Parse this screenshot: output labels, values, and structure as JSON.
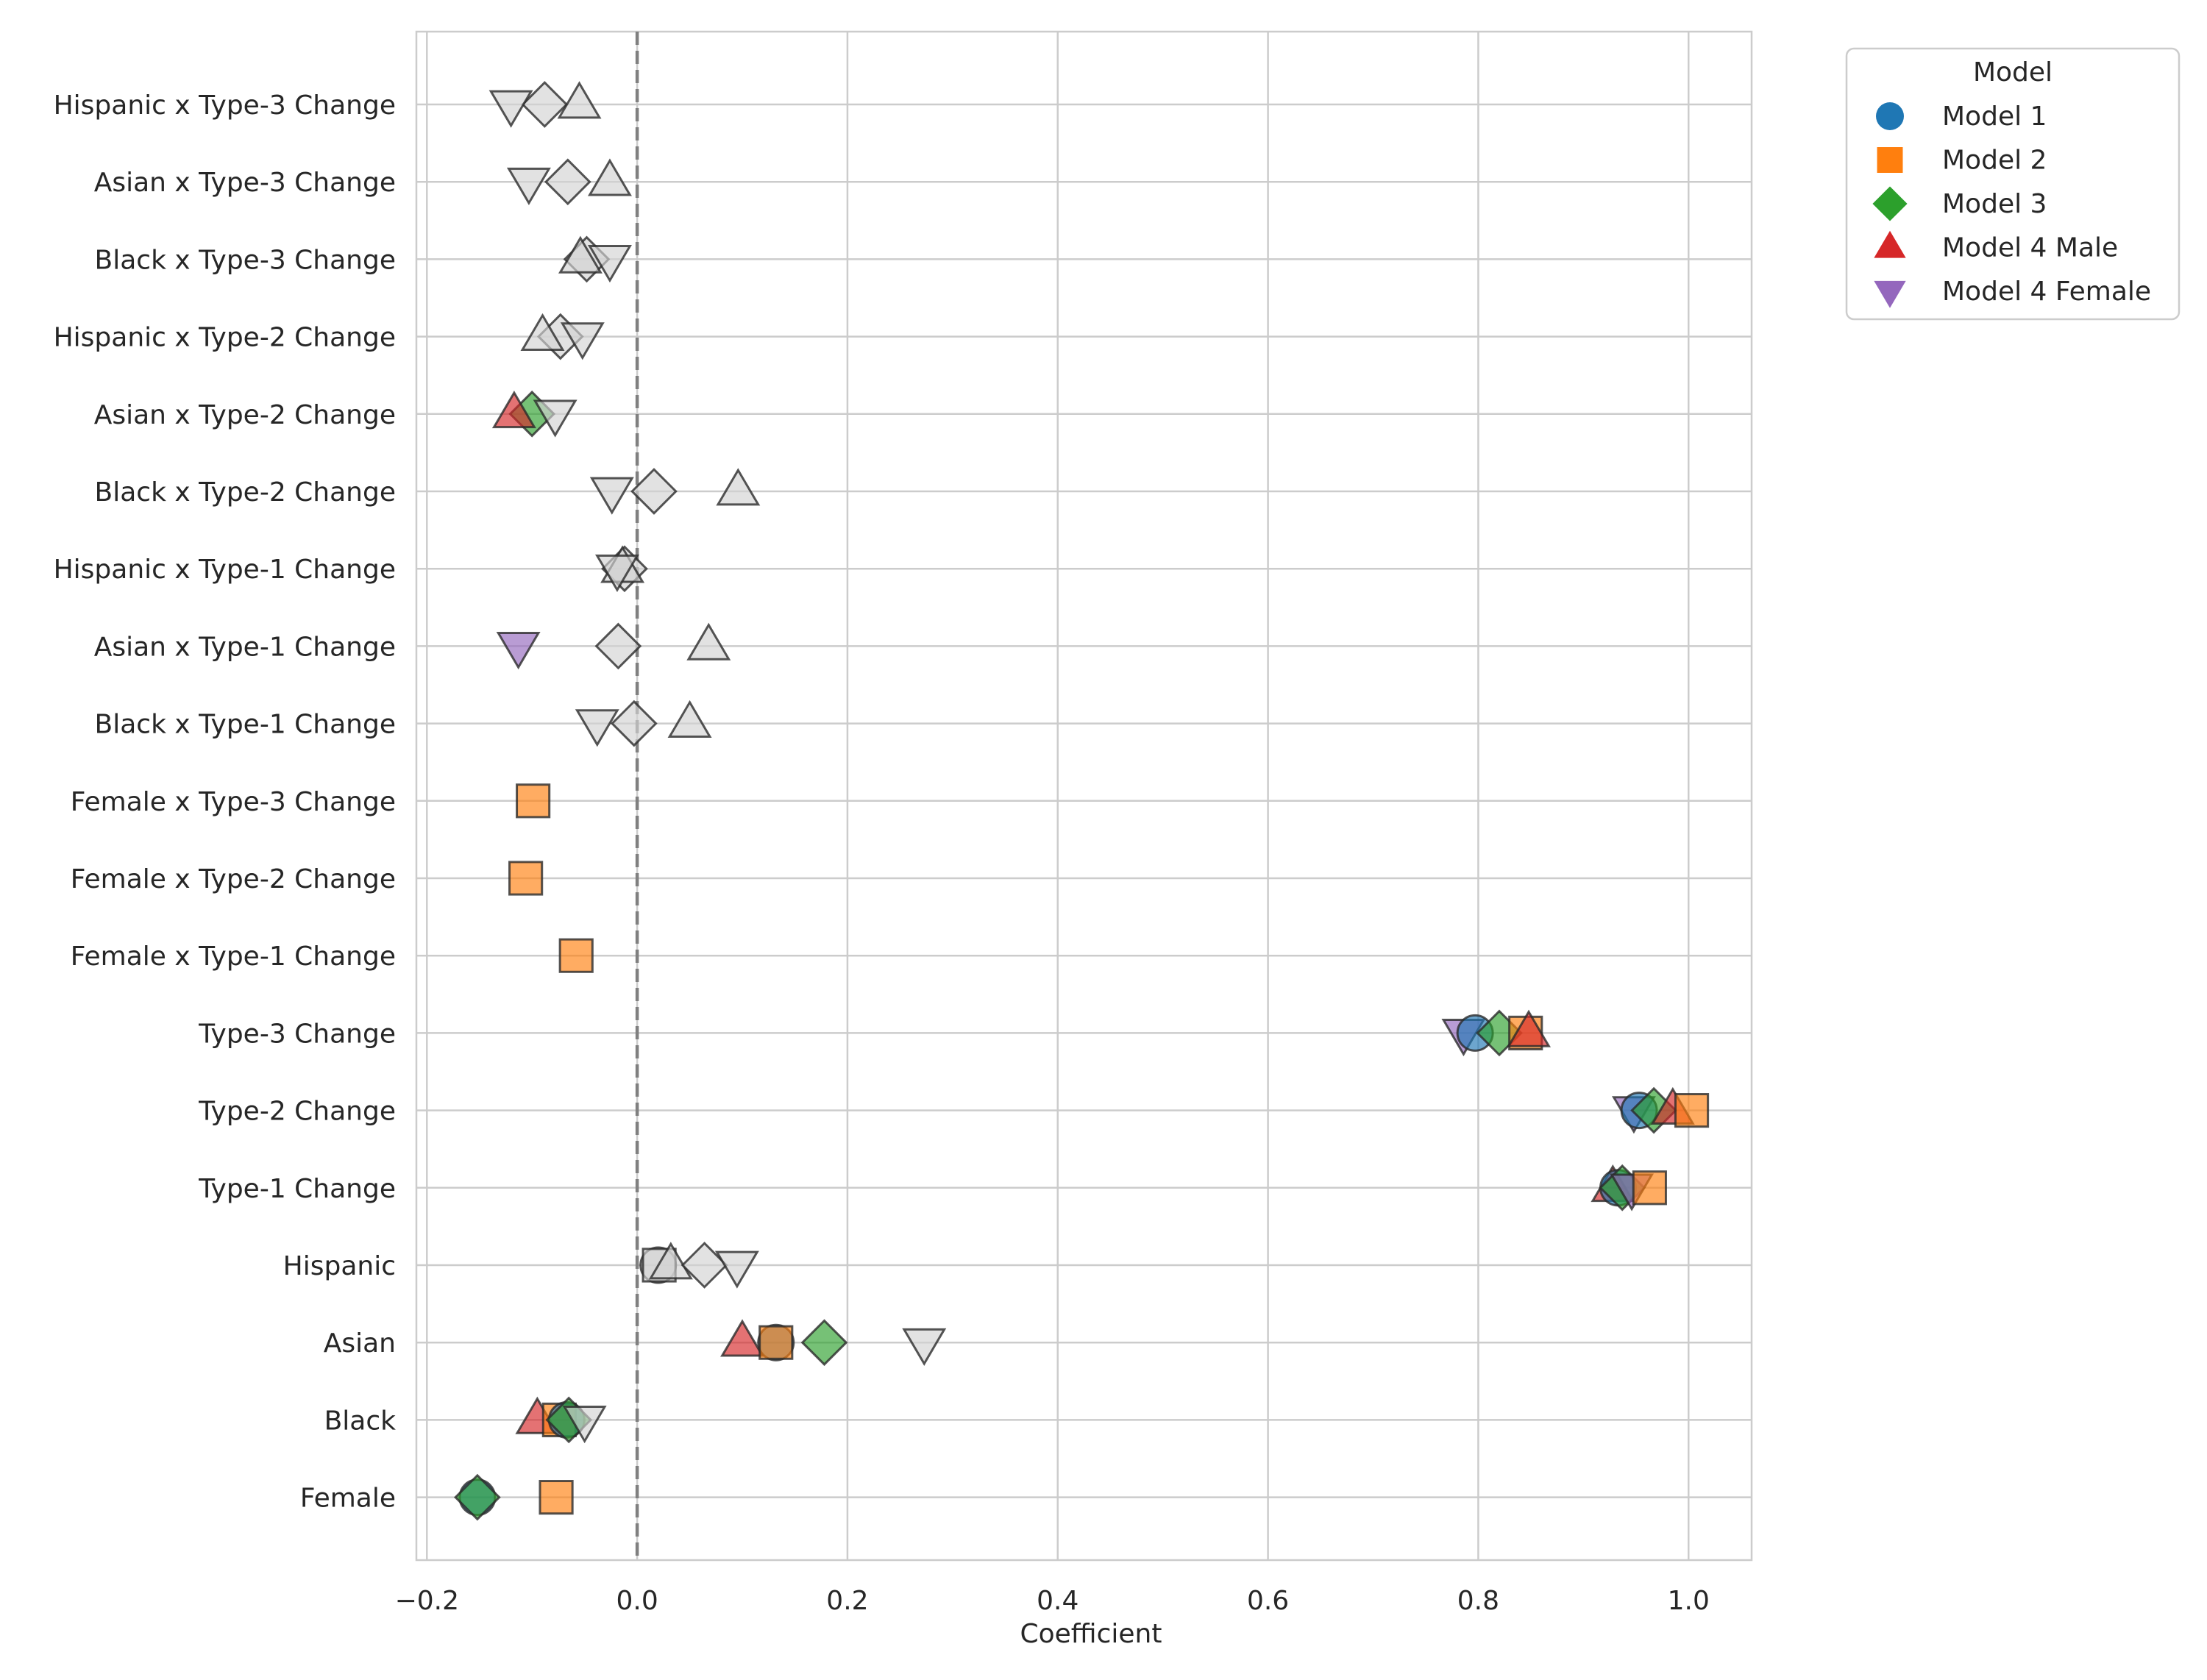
{
  "chart_data": {
    "type": "scatter",
    "title": "",
    "xlabel": "Coefficient",
    "ylabel": "",
    "xlim": [
      -0.21,
      1.06
    ],
    "xticks": [
      -0.2,
      0.0,
      0.2,
      0.4,
      0.6,
      0.8,
      1.0
    ],
    "xtick_labels": [
      "−0.2",
      "0.0",
      "0.2",
      "0.4",
      "0.6",
      "0.8",
      "1.0"
    ],
    "reference_line": 0.0,
    "grid": true,
    "legend_placement": "outside-top-right",
    "legend": {
      "title": "Model",
      "entries": [
        {
          "name": "Model 1",
          "marker": "circle",
          "color": "#1f77b4"
        },
        {
          "name": "Model 2",
          "marker": "square",
          "color": "#ff7f0e"
        },
        {
          "name": "Model 3",
          "marker": "diamond",
          "color": "#2ca02c"
        },
        {
          "name": "Model 4 Male",
          "marker": "triangle-up",
          "color": "#d62728"
        },
        {
          "name": "Model 4 Female",
          "marker": "triangle-down",
          "color": "#9467bd"
        }
      ]
    },
    "insignificant_color": "#d3d3d3",
    "categories": [
      "Hispanic x Type-3 Change",
      "Asian x Type-3 Change",
      "Black x Type-3 Change",
      "Hispanic x Type-2 Change",
      "Asian x Type-2 Change",
      "Black x Type-2 Change",
      "Hispanic x Type-1 Change",
      "Asian x Type-1 Change",
      "Black x Type-1 Change",
      "Female x Type-3 Change",
      "Female x Type-2 Change",
      "Female x Type-1 Change",
      "Type-3 Change",
      "Type-2 Change",
      "Type-1 Change",
      "Hispanic",
      "Asian",
      "Black",
      "Female"
    ],
    "points": [
      {
        "category": "Hispanic x Type-3 Change",
        "model": "Model 3",
        "value": -0.088,
        "significant": false
      },
      {
        "category": "Hispanic x Type-3 Change",
        "model": "Model 4 Male",
        "value": -0.055,
        "significant": false
      },
      {
        "category": "Hispanic x Type-3 Change",
        "model": "Model 4 Female",
        "value": -0.12,
        "significant": false
      },
      {
        "category": "Asian x Type-3 Change",
        "model": "Model 3",
        "value": -0.066,
        "significant": false
      },
      {
        "category": "Asian x Type-3 Change",
        "model": "Model 4 Male",
        "value": -0.026,
        "significant": false
      },
      {
        "category": "Asian x Type-3 Change",
        "model": "Model 4 Female",
        "value": -0.103,
        "significant": false
      },
      {
        "category": "Black x Type-3 Change",
        "model": "Model 3",
        "value": -0.048,
        "significant": false
      },
      {
        "category": "Black x Type-3 Change",
        "model": "Model 4 Male",
        "value": -0.054,
        "significant": false
      },
      {
        "category": "Black x Type-3 Change",
        "model": "Model 4 Female",
        "value": -0.026,
        "significant": false
      },
      {
        "category": "Hispanic x Type-2 Change",
        "model": "Model 3",
        "value": -0.073,
        "significant": false
      },
      {
        "category": "Hispanic x Type-2 Change",
        "model": "Model 4 Male",
        "value": -0.09,
        "significant": false
      },
      {
        "category": "Hispanic x Type-2 Change",
        "model": "Model 4 Female",
        "value": -0.052,
        "significant": false
      },
      {
        "category": "Asian x Type-2 Change",
        "model": "Model 3",
        "value": -0.1,
        "significant": true
      },
      {
        "category": "Asian x Type-2 Change",
        "model": "Model 4 Male",
        "value": -0.117,
        "significant": true
      },
      {
        "category": "Asian x Type-2 Change",
        "model": "Model 4 Female",
        "value": -0.078,
        "significant": false
      },
      {
        "category": "Black x Type-2 Change",
        "model": "Model 3",
        "value": 0.016,
        "significant": false
      },
      {
        "category": "Black x Type-2 Change",
        "model": "Model 4 Male",
        "value": 0.096,
        "significant": false
      },
      {
        "category": "Black x Type-2 Change",
        "model": "Model 4 Female",
        "value": -0.024,
        "significant": false
      },
      {
        "category": "Hispanic x Type-1 Change",
        "model": "Model 3",
        "value": -0.012,
        "significant": false
      },
      {
        "category": "Hispanic x Type-1 Change",
        "model": "Model 4 Male",
        "value": -0.014,
        "significant": false
      },
      {
        "category": "Hispanic x Type-1 Change",
        "model": "Model 4 Female",
        "value": -0.019,
        "significant": false
      },
      {
        "category": "Asian x Type-1 Change",
        "model": "Model 3",
        "value": -0.018,
        "significant": false
      },
      {
        "category": "Asian x Type-1 Change",
        "model": "Model 4 Male",
        "value": 0.068,
        "significant": false
      },
      {
        "category": "Asian x Type-1 Change",
        "model": "Model 4 Female",
        "value": -0.113,
        "significant": true
      },
      {
        "category": "Black x Type-1 Change",
        "model": "Model 3",
        "value": -0.003,
        "significant": false
      },
      {
        "category": "Black x Type-1 Change",
        "model": "Model 4 Male",
        "value": 0.05,
        "significant": false
      },
      {
        "category": "Black x Type-1 Change",
        "model": "Model 4 Female",
        "value": -0.038,
        "significant": false
      },
      {
        "category": "Female x Type-3 Change",
        "model": "Model 2",
        "value": -0.099,
        "significant": true
      },
      {
        "category": "Female x Type-2 Change",
        "model": "Model 2",
        "value": -0.106,
        "significant": true
      },
      {
        "category": "Female x Type-1 Change",
        "model": "Model 2",
        "value": -0.058,
        "significant": true
      },
      {
        "category": "Type-3 Change",
        "model": "Model 4 Female",
        "value": 0.786,
        "significant": true
      },
      {
        "category": "Type-3 Change",
        "model": "Model 1",
        "value": 0.797,
        "significant": true
      },
      {
        "category": "Type-3 Change",
        "model": "Model 3",
        "value": 0.82,
        "significant": true
      },
      {
        "category": "Type-3 Change",
        "model": "Model 2",
        "value": 0.845,
        "significant": true
      },
      {
        "category": "Type-3 Change",
        "model": "Model 4 Male",
        "value": 0.848,
        "significant": true
      },
      {
        "category": "Type-2 Change",
        "model": "Model 4 Female",
        "value": 0.948,
        "significant": true
      },
      {
        "category": "Type-2 Change",
        "model": "Model 1",
        "value": 0.953,
        "significant": true
      },
      {
        "category": "Type-2 Change",
        "model": "Model 3",
        "value": 0.967,
        "significant": true
      },
      {
        "category": "Type-2 Change",
        "model": "Model 4 Male",
        "value": 0.985,
        "significant": true
      },
      {
        "category": "Type-2 Change",
        "model": "Model 2",
        "value": 1.003,
        "significant": true
      },
      {
        "category": "Type-1 Change",
        "model": "Model 4 Male",
        "value": 0.928,
        "significant": true
      },
      {
        "category": "Type-1 Change",
        "model": "Model 1",
        "value": 0.933,
        "significant": true
      },
      {
        "category": "Type-1 Change",
        "model": "Model 3",
        "value": 0.937,
        "significant": true
      },
      {
        "category": "Type-1 Change",
        "model": "Model 4 Female",
        "value": 0.946,
        "significant": true
      },
      {
        "category": "Type-1 Change",
        "model": "Model 2",
        "value": 0.963,
        "significant": true
      },
      {
        "category": "Hispanic",
        "model": "Model 1",
        "value": 0.02,
        "significant": false
      },
      {
        "category": "Hispanic",
        "model": "Model 2",
        "value": 0.021,
        "significant": false
      },
      {
        "category": "Hispanic",
        "model": "Model 4 Male",
        "value": 0.032,
        "significant": false
      },
      {
        "category": "Hispanic",
        "model": "Model 3",
        "value": 0.064,
        "significant": false
      },
      {
        "category": "Hispanic",
        "model": "Model 4 Female",
        "value": 0.095,
        "significant": false
      },
      {
        "category": "Asian",
        "model": "Model 4 Male",
        "value": 0.1,
        "significant": true
      },
      {
        "category": "Asian",
        "model": "Model 1",
        "value": 0.132,
        "significant": true
      },
      {
        "category": "Asian",
        "model": "Model 2",
        "value": 0.132,
        "significant": true
      },
      {
        "category": "Asian",
        "model": "Model 3",
        "value": 0.178,
        "significant": true
      },
      {
        "category": "Asian",
        "model": "Model 4 Female",
        "value": 0.273,
        "significant": false
      },
      {
        "category": "Black",
        "model": "Model 4 Male",
        "value": -0.095,
        "significant": true
      },
      {
        "category": "Black",
        "model": "Model 2",
        "value": -0.074,
        "significant": true
      },
      {
        "category": "Black",
        "model": "Model 1",
        "value": -0.067,
        "significant": true
      },
      {
        "category": "Black",
        "model": "Model 3",
        "value": -0.065,
        "significant": true
      },
      {
        "category": "Black",
        "model": "Model 4 Female",
        "value": -0.05,
        "significant": false
      },
      {
        "category": "Female",
        "model": "Model 1",
        "value": -0.152,
        "significant": true
      },
      {
        "category": "Female",
        "model": "Model 3",
        "value": -0.152,
        "significant": true
      },
      {
        "category": "Female",
        "model": "Model 2",
        "value": -0.077,
        "significant": true
      }
    ]
  }
}
